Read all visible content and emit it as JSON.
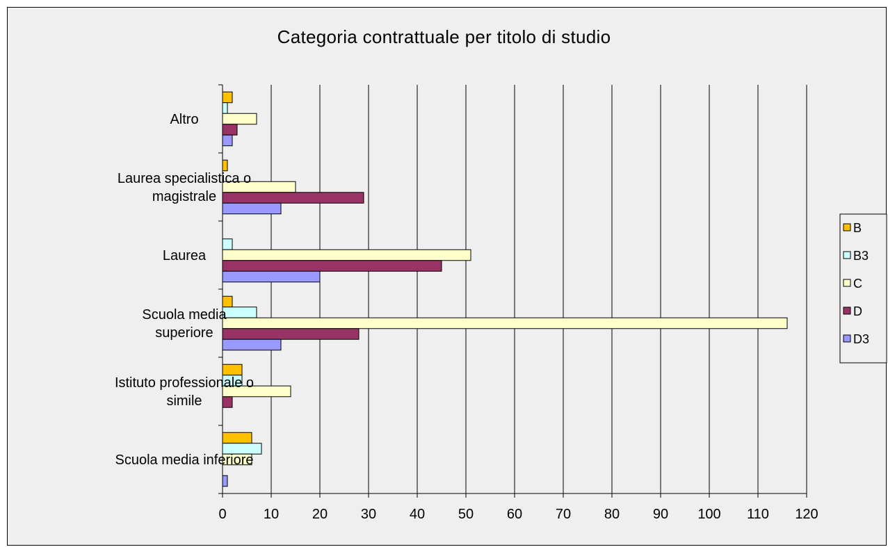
{
  "chart_data": {
    "type": "bar",
    "orientation": "horizontal",
    "title": "Categoria contrattuale per titolo di studio",
    "xlabel": "",
    "ylabel": "",
    "xlim": [
      0,
      120
    ],
    "x_ticks": [
      0,
      10,
      20,
      30,
      40,
      50,
      60,
      70,
      80,
      90,
      100,
      110,
      120
    ],
    "grid": "vertical",
    "legend_position": "right",
    "categories": [
      [
        "Altro"
      ],
      [
        "Laurea specialistica o",
        "magistrale"
      ],
      [
        "Laurea"
      ],
      [
        "Scuola media",
        "superiore"
      ],
      [
        "Istituto professionale o",
        "simile"
      ],
      [
        "Scuola media inferiore"
      ]
    ],
    "series": [
      {
        "name": "B",
        "color": "#ffc000",
        "values": [
          2,
          1,
          0,
          2,
          4,
          6
        ]
      },
      {
        "name": "B3",
        "color": "#ccffff",
        "values": [
          1,
          0,
          2,
          7,
          4,
          8
        ]
      },
      {
        "name": "C",
        "color": "#ffffcc",
        "values": [
          7,
          15,
          51,
          116,
          14,
          6
        ]
      },
      {
        "name": "D",
        "color": "#993366",
        "values": [
          3,
          29,
          45,
          28,
          2,
          0
        ]
      },
      {
        "name": "D3",
        "color": "#9999ff",
        "values": [
          2,
          12,
          20,
          12,
          0,
          1
        ]
      }
    ]
  }
}
